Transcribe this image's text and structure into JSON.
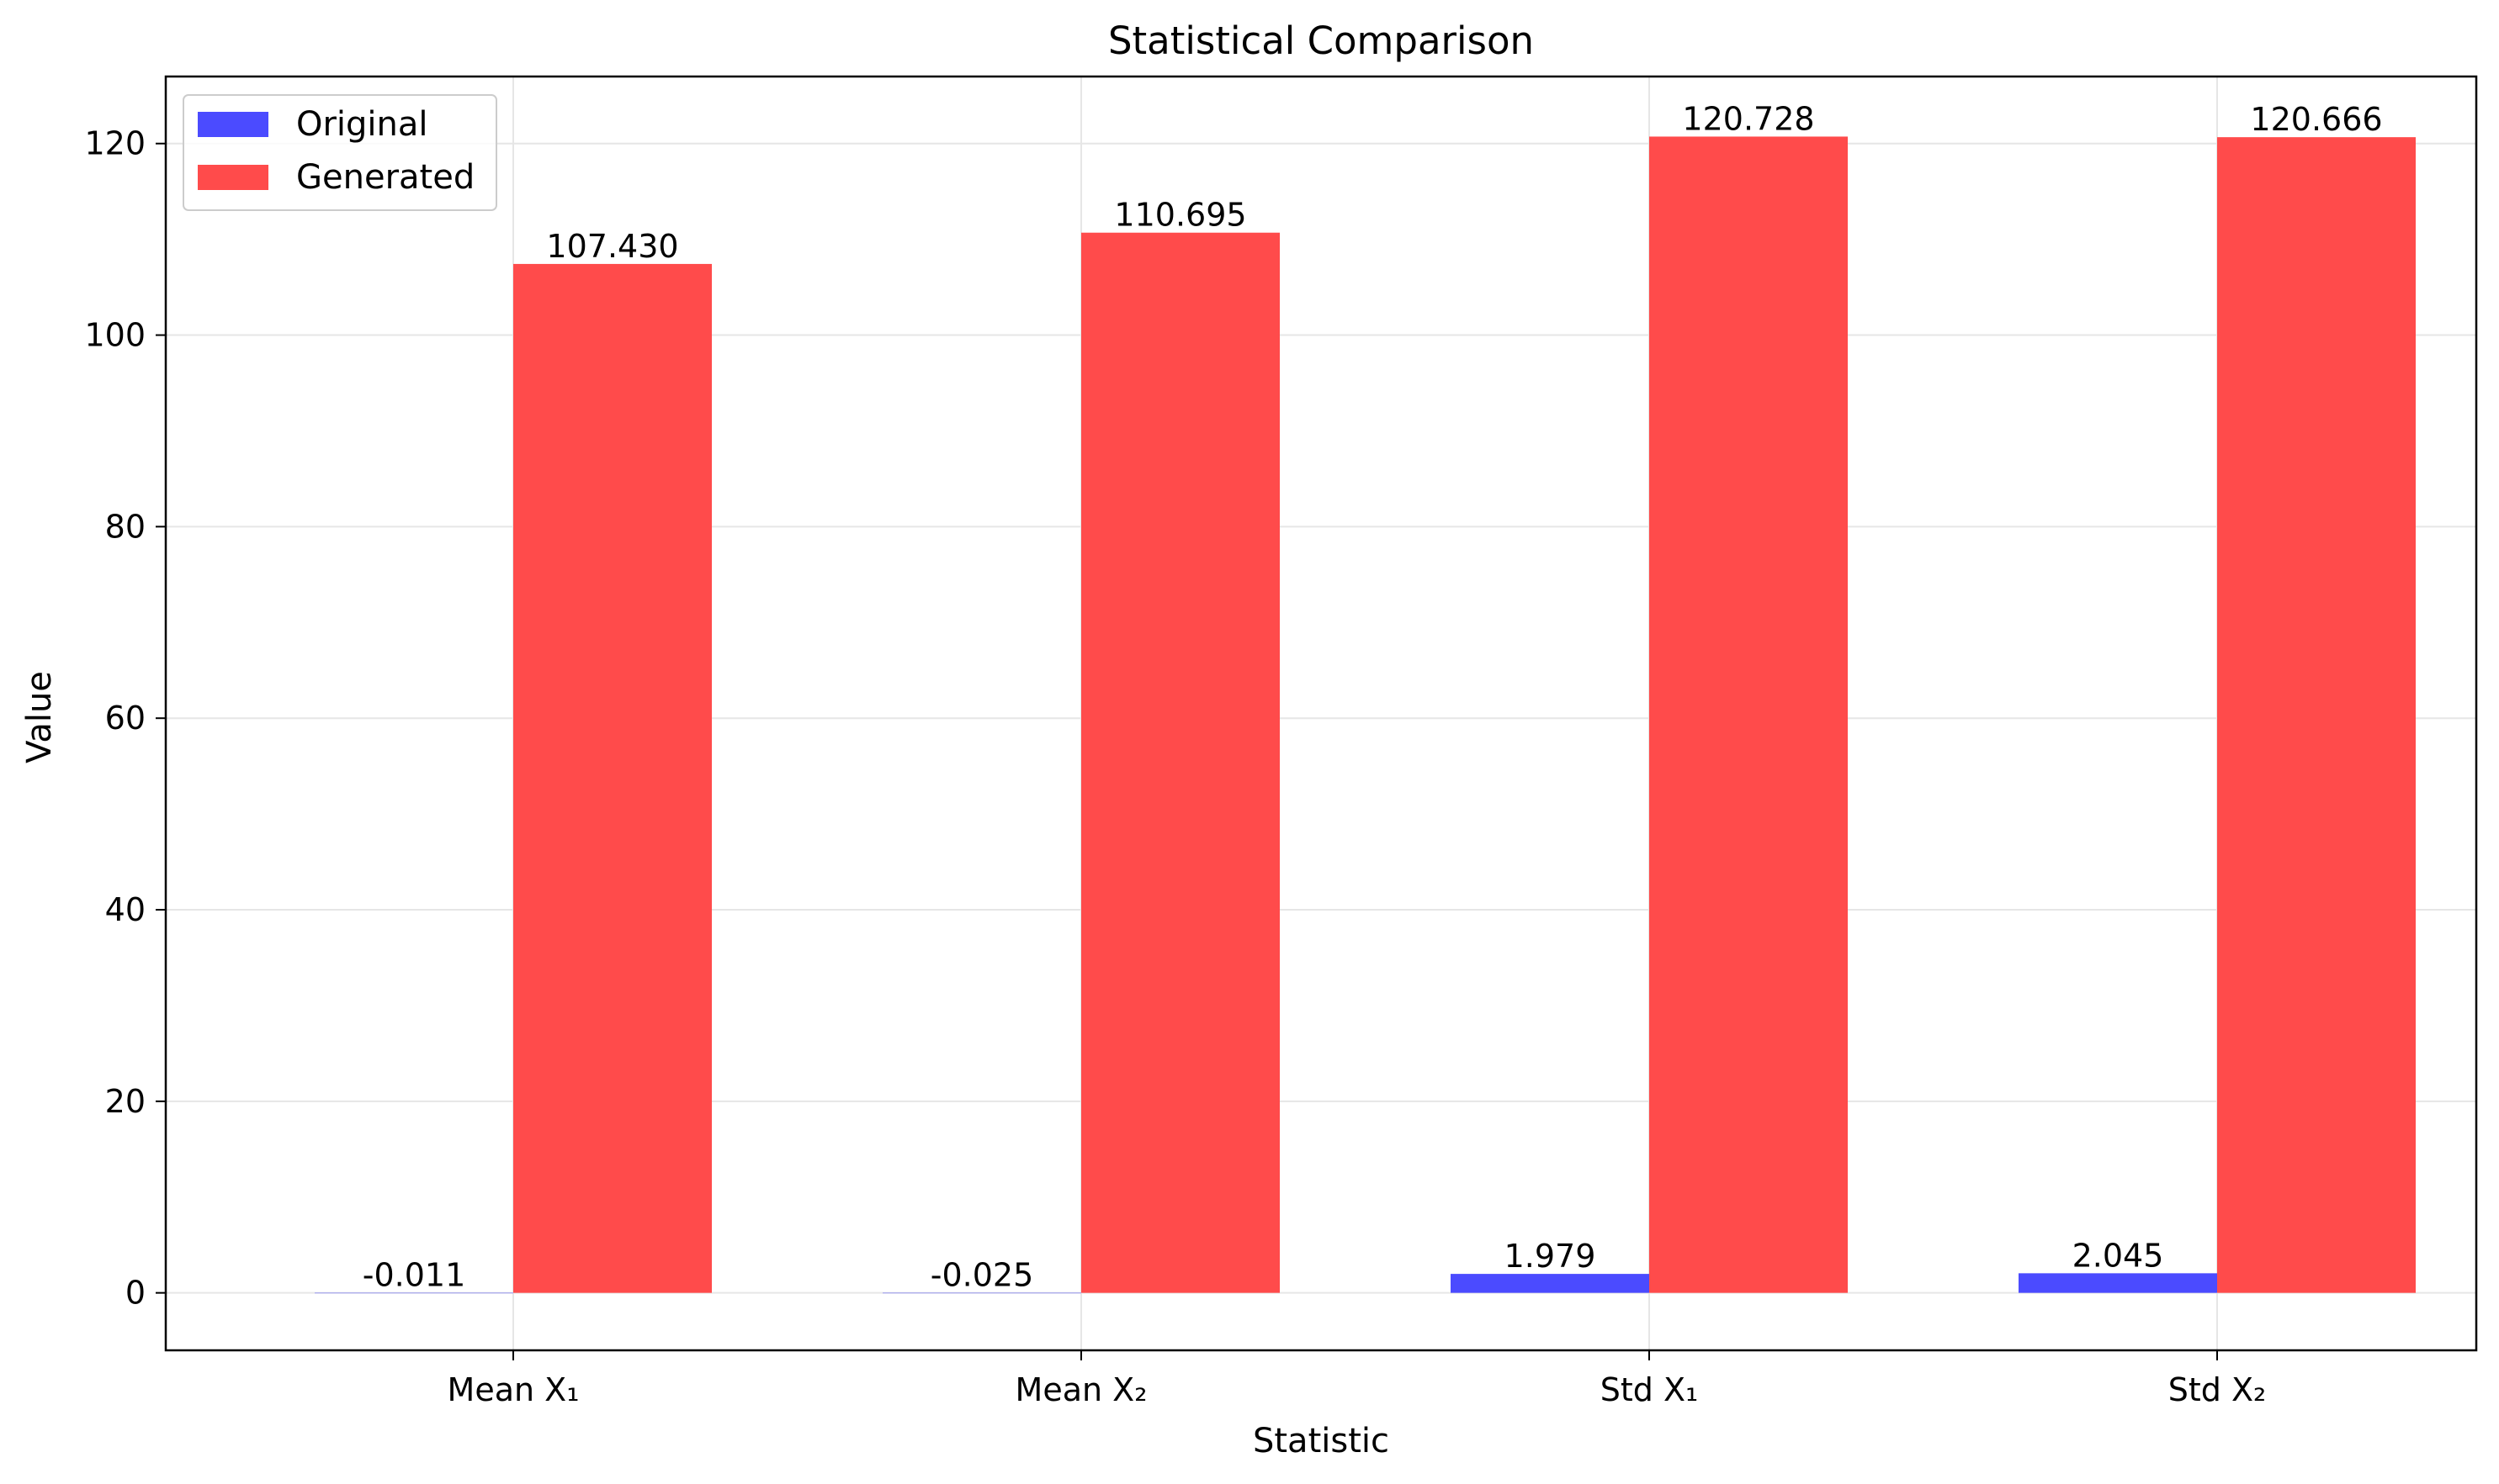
{
  "chart_data": {
    "type": "bar",
    "title": "Statistical Comparison",
    "xlabel": "Statistic",
    "ylabel": "Value",
    "categories": [
      "Mean X₁",
      "Mean X₂",
      "Std X₁",
      "Std X₂"
    ],
    "series": [
      {
        "name": "Original",
        "color": "#4b4bff",
        "values": [
          -0.011,
          -0.025,
          1.979,
          2.045
        ],
        "labels": [
          "-0.011",
          "-0.025",
          "1.979",
          "2.045"
        ]
      },
      {
        "name": "Generated",
        "color": "#ff4b4b",
        "values": [
          107.43,
          110.695,
          120.728,
          120.666
        ],
        "labels": [
          "107.430",
          "110.695",
          "120.728",
          "120.666"
        ]
      }
    ],
    "ylim": [
      -6,
      127
    ],
    "yticks": [
      0,
      20,
      40,
      60,
      80,
      100,
      120
    ],
    "grid": true,
    "legend_position": "top-left"
  }
}
